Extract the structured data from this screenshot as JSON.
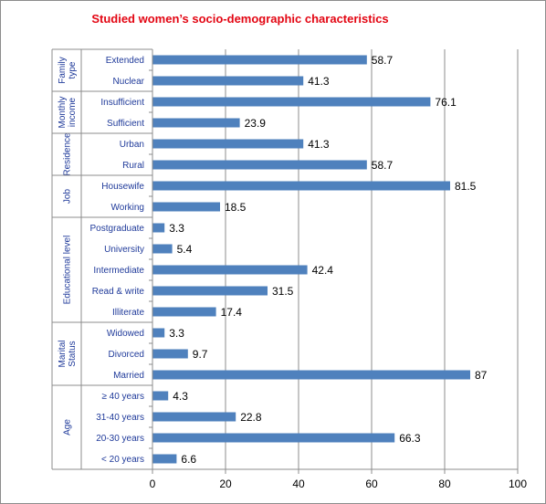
{
  "chart_data": {
    "type": "bar",
    "orientation": "horizontal",
    "title": "Studied women’s socio-demographic  characteristics",
    "xlim": [
      0,
      100
    ],
    "x_ticks": [
      0,
      20,
      40,
      60,
      80,
      100
    ],
    "grid": true,
    "bar_color": "#4f81bd",
    "title_color": "#e30613",
    "label_color": "#1f3a9a",
    "groups": [
      {
        "name": "Family type",
        "categories": [
          "Extended",
          "Nuclear"
        ],
        "values": [
          58.7,
          41.3
        ],
        "labels": [
          "58.7",
          "41.3"
        ]
      },
      {
        "name": "Monthly income",
        "categories": [
          "Insufficient",
          "Sufficient"
        ],
        "values": [
          76.1,
          23.9
        ],
        "labels": [
          "76.1",
          "23.9"
        ]
      },
      {
        "name": "Residence",
        "categories": [
          "Urban",
          "Rural"
        ],
        "values": [
          41.3,
          58.7
        ],
        "labels": [
          "41.3",
          "58.7"
        ]
      },
      {
        "name": "Job",
        "categories": [
          "Housewife",
          "Working"
        ],
        "values": [
          81.5,
          18.5
        ],
        "labels": [
          "81.5",
          "18.5"
        ]
      },
      {
        "name": "Educational level",
        "categories": [
          "Postgraduate",
          "University",
          "Intermediate",
          "Read & write",
          "Illiterate"
        ],
        "values": [
          3.3,
          5.4,
          42.4,
          31.5,
          17.4
        ],
        "labels": [
          "3.3",
          "5.4",
          "42.4",
          "31.5",
          "17.4"
        ]
      },
      {
        "name": "Marital Status",
        "categories": [
          "Widowed",
          "Divorced",
          "Married"
        ],
        "values": [
          3.3,
          9.7,
          87
        ],
        "labels": [
          "3.3",
          "9.7",
          "87"
        ]
      },
      {
        "name": "Age",
        "categories": [
          "≥ 40 years",
          "31-40 years",
          "20-30 years",
          "< 20 years"
        ],
        "values": [
          4.3,
          22.8,
          66.3,
          6.6
        ],
        "labels": [
          "4.3",
          "22.8",
          "66.3",
          "6.6"
        ]
      }
    ]
  }
}
